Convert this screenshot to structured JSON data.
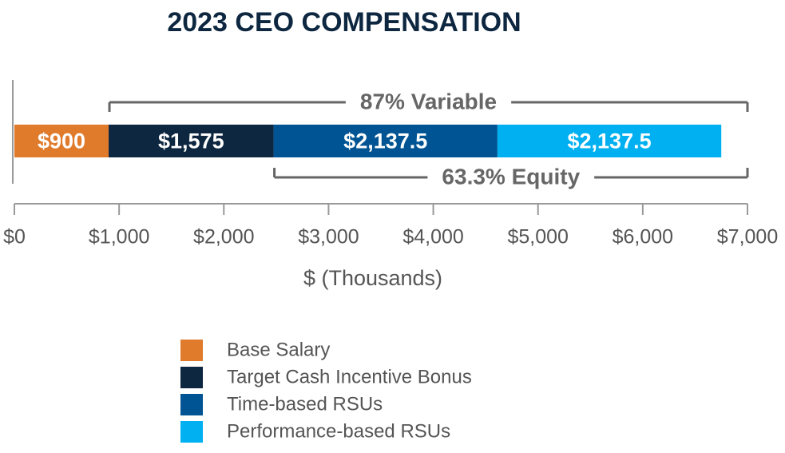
{
  "chart_data": {
    "type": "bar",
    "stacked": true,
    "orientation": "horizontal",
    "title": "2023 CEO COMPENSATION",
    "x_label": "$ (Thousands)",
    "series": [
      {
        "name": "Base Salary",
        "color": "#e07b2c",
        "values": [
          900
        ],
        "value_labels": [
          "$900"
        ]
      },
      {
        "name": "Target Cash Incentive Bonus",
        "color": "#0d2740",
        "values": [
          1575
        ],
        "value_labels": [
          "$1,575"
        ]
      },
      {
        "name": "Time-based RSUs",
        "color": "#005493",
        "values": [
          2137.5
        ],
        "value_labels": [
          "$2,137.5"
        ]
      },
      {
        "name": "Performance-based RSUs",
        "color": "#00b0f0",
        "values": [
          2137.5
        ],
        "value_labels": [
          "$2,137.5"
        ]
      }
    ],
    "annotations": [
      "87% Variable",
      "63.3% Equity"
    ],
    "xlim": [
      0,
      7000
    ],
    "xticks": [
      {
        "value": 0,
        "label": "$0"
      },
      {
        "value": 1000,
        "label": "$1,000"
      },
      {
        "value": 2000,
        "label": "$2,000"
      },
      {
        "value": 3000,
        "label": "$3,000"
      },
      {
        "value": 4000,
        "label": "$4,000"
      },
      {
        "value": 5000,
        "label": "$5,000"
      },
      {
        "value": 6000,
        "label": "$6,000"
      },
      {
        "value": 7000,
        "label": "$7,000"
      }
    ]
  }
}
